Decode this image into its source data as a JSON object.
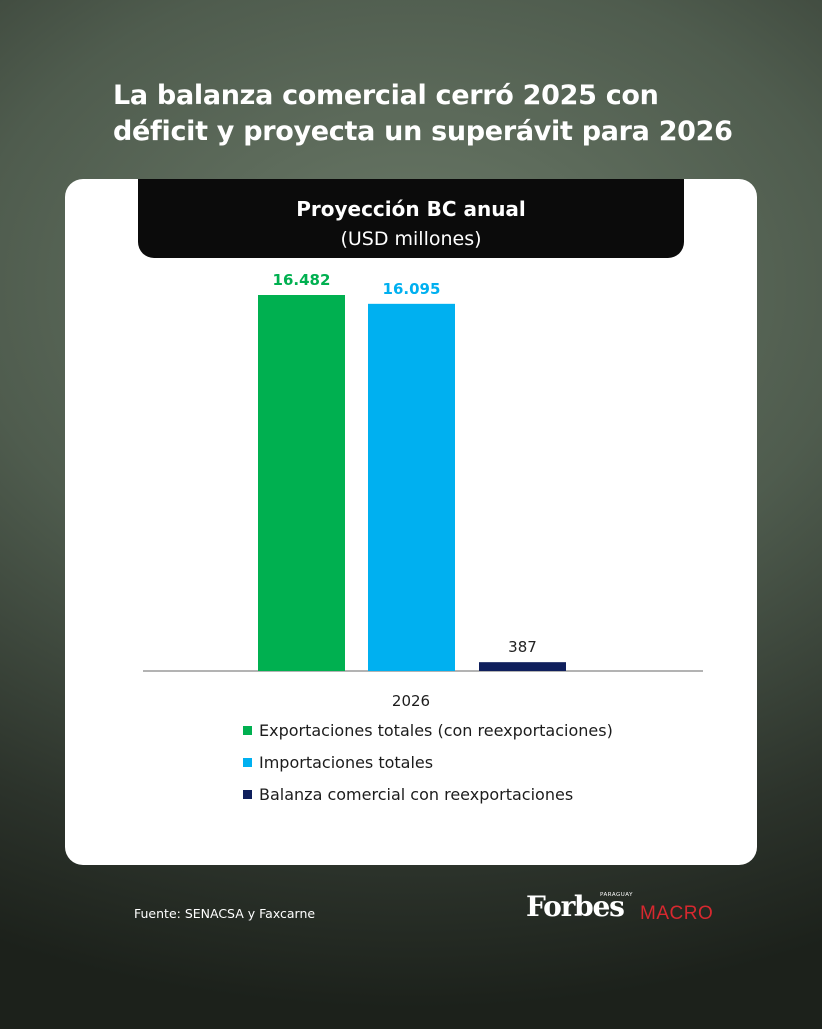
{
  "headline": {
    "line1": "La balanza comercial cerró 2025 con",
    "line2": "déficit y proyecta un superávit para 2026"
  },
  "chart_data": {
    "type": "bar",
    "title": "Proyección BC anual",
    "subtitle": "(USD millones)",
    "categories": [
      "2026"
    ],
    "series": [
      {
        "name": "Exportaciones totales (con reexportaciones)",
        "values": [
          16482
        ],
        "label": "16.482",
        "color": "#00b050",
        "label_color": "#00b050"
      },
      {
        "name": "Importaciones totales",
        "values": [
          16095
        ],
        "label": "16.095",
        "color": "#00b0f0",
        "label_color": "#00b0f0"
      },
      {
        "name": "Balanza comercial con reexportaciones",
        "values": [
          387
        ],
        "label": "387",
        "color": "#0f1f5c",
        "label_color": "#222222"
      }
    ],
    "ylim": [
      0,
      16482
    ],
    "grid": false,
    "legend": "bottom-left"
  },
  "footer": {
    "source": "Fuente: SENACSA y Faxcarne",
    "brand": "Forbes",
    "brand_country": "PARAGUAY",
    "brand_section": "MACRO"
  }
}
